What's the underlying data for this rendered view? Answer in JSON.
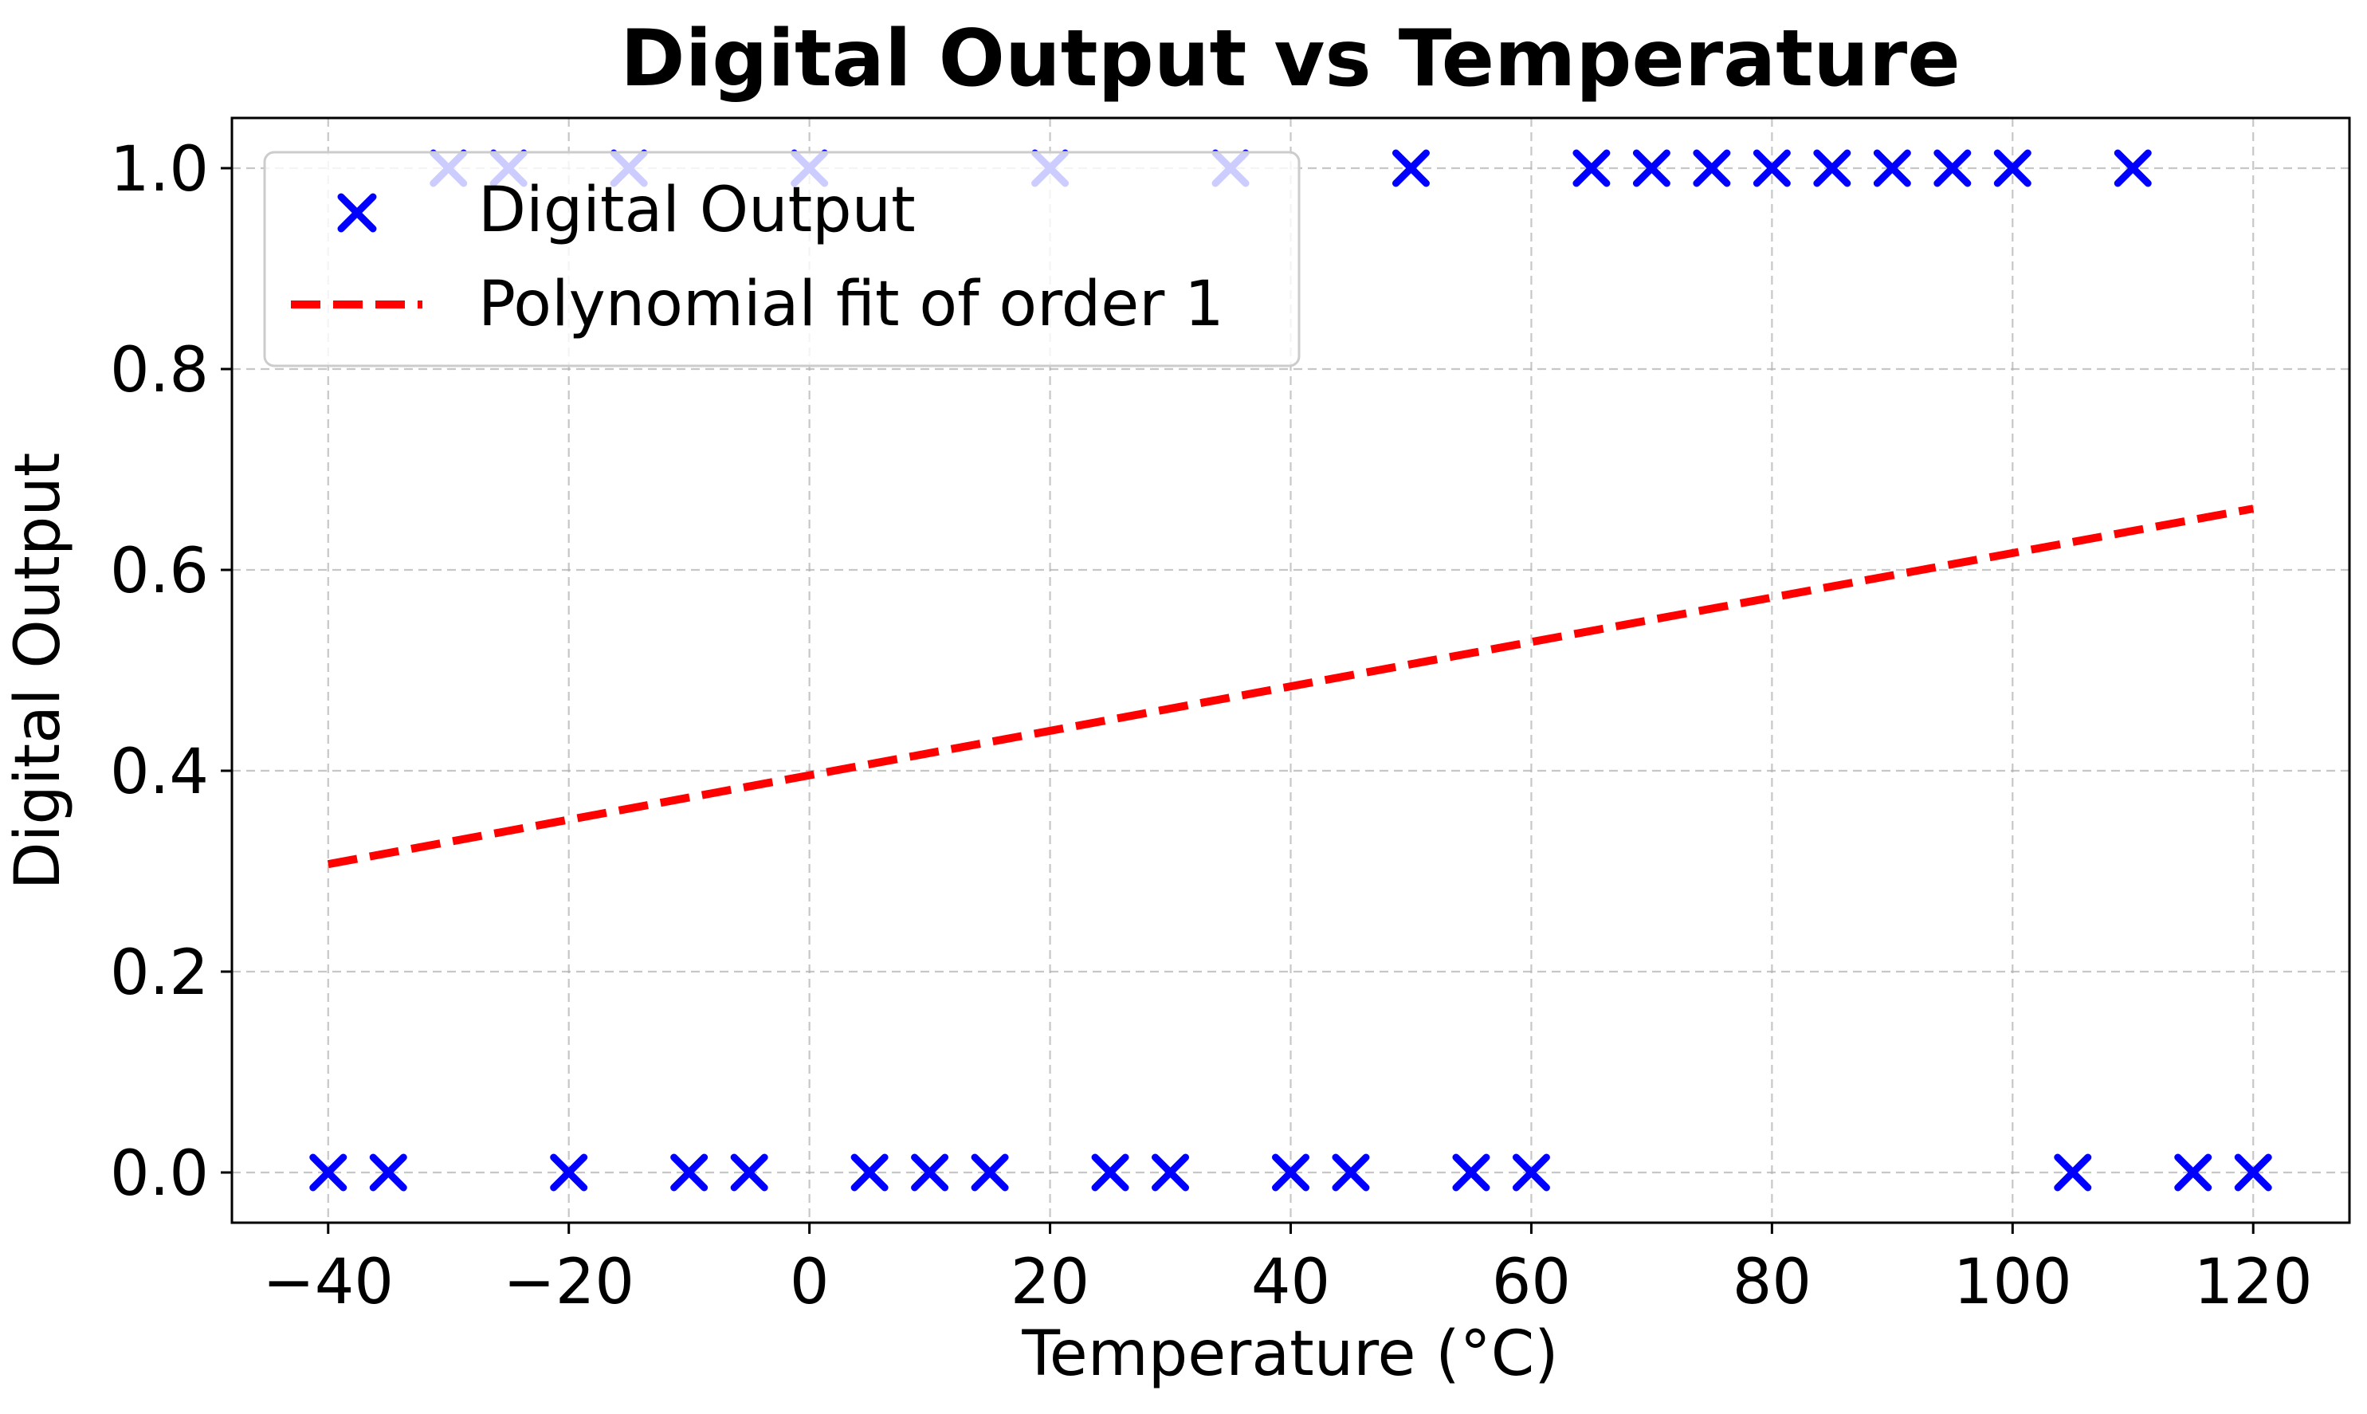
{
  "chart_data": {
    "type": "scatter",
    "title": "Digital Output vs Temperature",
    "xlabel": "Temperature (°C)",
    "ylabel": "Digital Output",
    "xlim": [
      -48,
      128
    ],
    "ylim": [
      -0.05,
      1.05
    ],
    "xticks": [
      -40,
      -20,
      0,
      20,
      40,
      60,
      80,
      100,
      120
    ],
    "xtick_labels": [
      "−40",
      "−20",
      "0",
      "20",
      "40",
      "60",
      "80",
      "100",
      "120"
    ],
    "yticks": [
      0.0,
      0.2,
      0.4,
      0.6,
      0.8,
      1.0
    ],
    "ytick_labels": [
      "0.0",
      "0.2",
      "0.4",
      "0.6",
      "0.8",
      "1.0"
    ],
    "grid": true,
    "legend_position": "top-left",
    "series": [
      {
        "name": "Digital Output",
        "kind": "scatter",
        "marker": "x",
        "color": "#0000ff",
        "x": [
          -40,
          -35,
          -30,
          -25,
          -20,
          -15,
          -10,
          -5,
          0,
          5,
          10,
          15,
          20,
          25,
          30,
          35,
          40,
          45,
          50,
          55,
          60,
          65,
          70,
          75,
          80,
          85,
          90,
          95,
          100,
          105,
          110,
          115,
          120
        ],
        "y": [
          0,
          0,
          1,
          1,
          0,
          1,
          0,
          0,
          1,
          0,
          0,
          0,
          1,
          0,
          0,
          1,
          0,
          0,
          1,
          0,
          0,
          1,
          1,
          1,
          1,
          1,
          1,
          1,
          1,
          0,
          1,
          0,
          0
        ]
      },
      {
        "name": "Polynomial fit of order 1",
        "kind": "line",
        "style": "dashed",
        "color": "#ff0000",
        "x": [
          -40,
          120
        ],
        "y": [
          0.307,
          0.661
        ]
      }
    ]
  }
}
